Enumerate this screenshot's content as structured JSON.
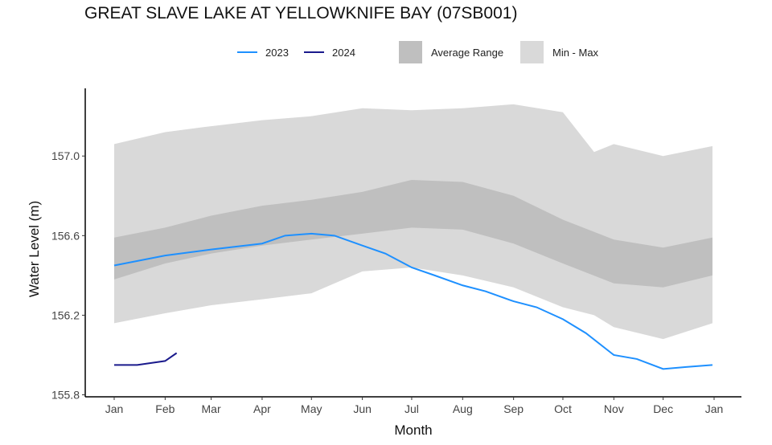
{
  "chart_data": {
    "type": "line",
    "title": "GREAT SLAVE LAKE AT YELLOWKNIFE BAY (07SB001)",
    "xlabel": "Month",
    "ylabel": "Water Level (m)",
    "x_ticks": [
      "Jan",
      "Feb",
      "Mar",
      "Apr",
      "May",
      "Jun",
      "Jul",
      "Aug",
      "Sep",
      "Oct",
      "Nov",
      "Dec",
      "Jan"
    ],
    "y_ticks": [
      157.0,
      156.6,
      156.2,
      155.8
    ],
    "ylim": [
      155.79,
      157.34
    ],
    "grid": false,
    "legend_placement": "top",
    "colors": {
      "2023": "#1e90ff",
      "2024": "#1a1a8c",
      "average_range": "#bfbfbf",
      "min_max": "#d9d9d9"
    },
    "legend": {
      "s2023": "2023",
      "s2024": "2024",
      "avg": "Average Range",
      "minmax": "Min - Max"
    },
    "series": [
      {
        "name": "2023",
        "x": [
          "01-01",
          "02-01",
          "03-01",
          "04-01",
          "04-15",
          "05-01",
          "05-15",
          "06-01",
          "06-15",
          "07-01",
          "07-15",
          "08-01",
          "08-15",
          "09-01",
          "09-15",
          "10-01",
          "10-15",
          "11-01",
          "11-15",
          "12-01",
          "12-15",
          "12-31"
        ],
        "values": [
          156.45,
          156.5,
          156.53,
          156.56,
          156.6,
          156.61,
          156.6,
          156.55,
          156.51,
          156.44,
          156.4,
          156.35,
          156.32,
          156.27,
          156.24,
          156.18,
          156.11,
          156.0,
          155.98,
          155.93,
          155.94,
          155.95
        ]
      },
      {
        "name": "2024",
        "x": [
          "01-01",
          "01-15",
          "02-01",
          "02-08"
        ],
        "values": [
          155.95,
          155.95,
          155.97,
          156.01
        ]
      }
    ],
    "bands": [
      {
        "name": "Min - Max",
        "x": [
          "01-01",
          "02-01",
          "03-01",
          "04-01",
          "05-01",
          "06-01",
          "07-01",
          "08-01",
          "09-01",
          "10-01",
          "10-20",
          "11-01",
          "12-01",
          "12-31"
        ],
        "upper": [
          157.06,
          157.12,
          157.15,
          157.18,
          157.2,
          157.24,
          157.23,
          157.24,
          157.26,
          157.22,
          157.02,
          157.06,
          157.0,
          157.05
        ],
        "lower": [
          156.16,
          156.21,
          156.25,
          156.28,
          156.31,
          156.42,
          156.44,
          156.4,
          156.34,
          156.24,
          156.2,
          156.14,
          156.08,
          156.16
        ]
      },
      {
        "name": "Average Range",
        "x": [
          "01-01",
          "02-01",
          "03-01",
          "04-01",
          "05-01",
          "06-01",
          "07-01",
          "08-01",
          "09-01",
          "10-01",
          "11-01",
          "12-01",
          "12-31"
        ],
        "upper": [
          156.59,
          156.64,
          156.7,
          156.75,
          156.78,
          156.82,
          156.88,
          156.87,
          156.8,
          156.68,
          156.58,
          156.54,
          156.59
        ],
        "lower": [
          156.38,
          156.46,
          156.51,
          156.55,
          156.58,
          156.61,
          156.64,
          156.63,
          156.56,
          156.46,
          156.36,
          156.34,
          156.4
        ]
      }
    ]
  }
}
